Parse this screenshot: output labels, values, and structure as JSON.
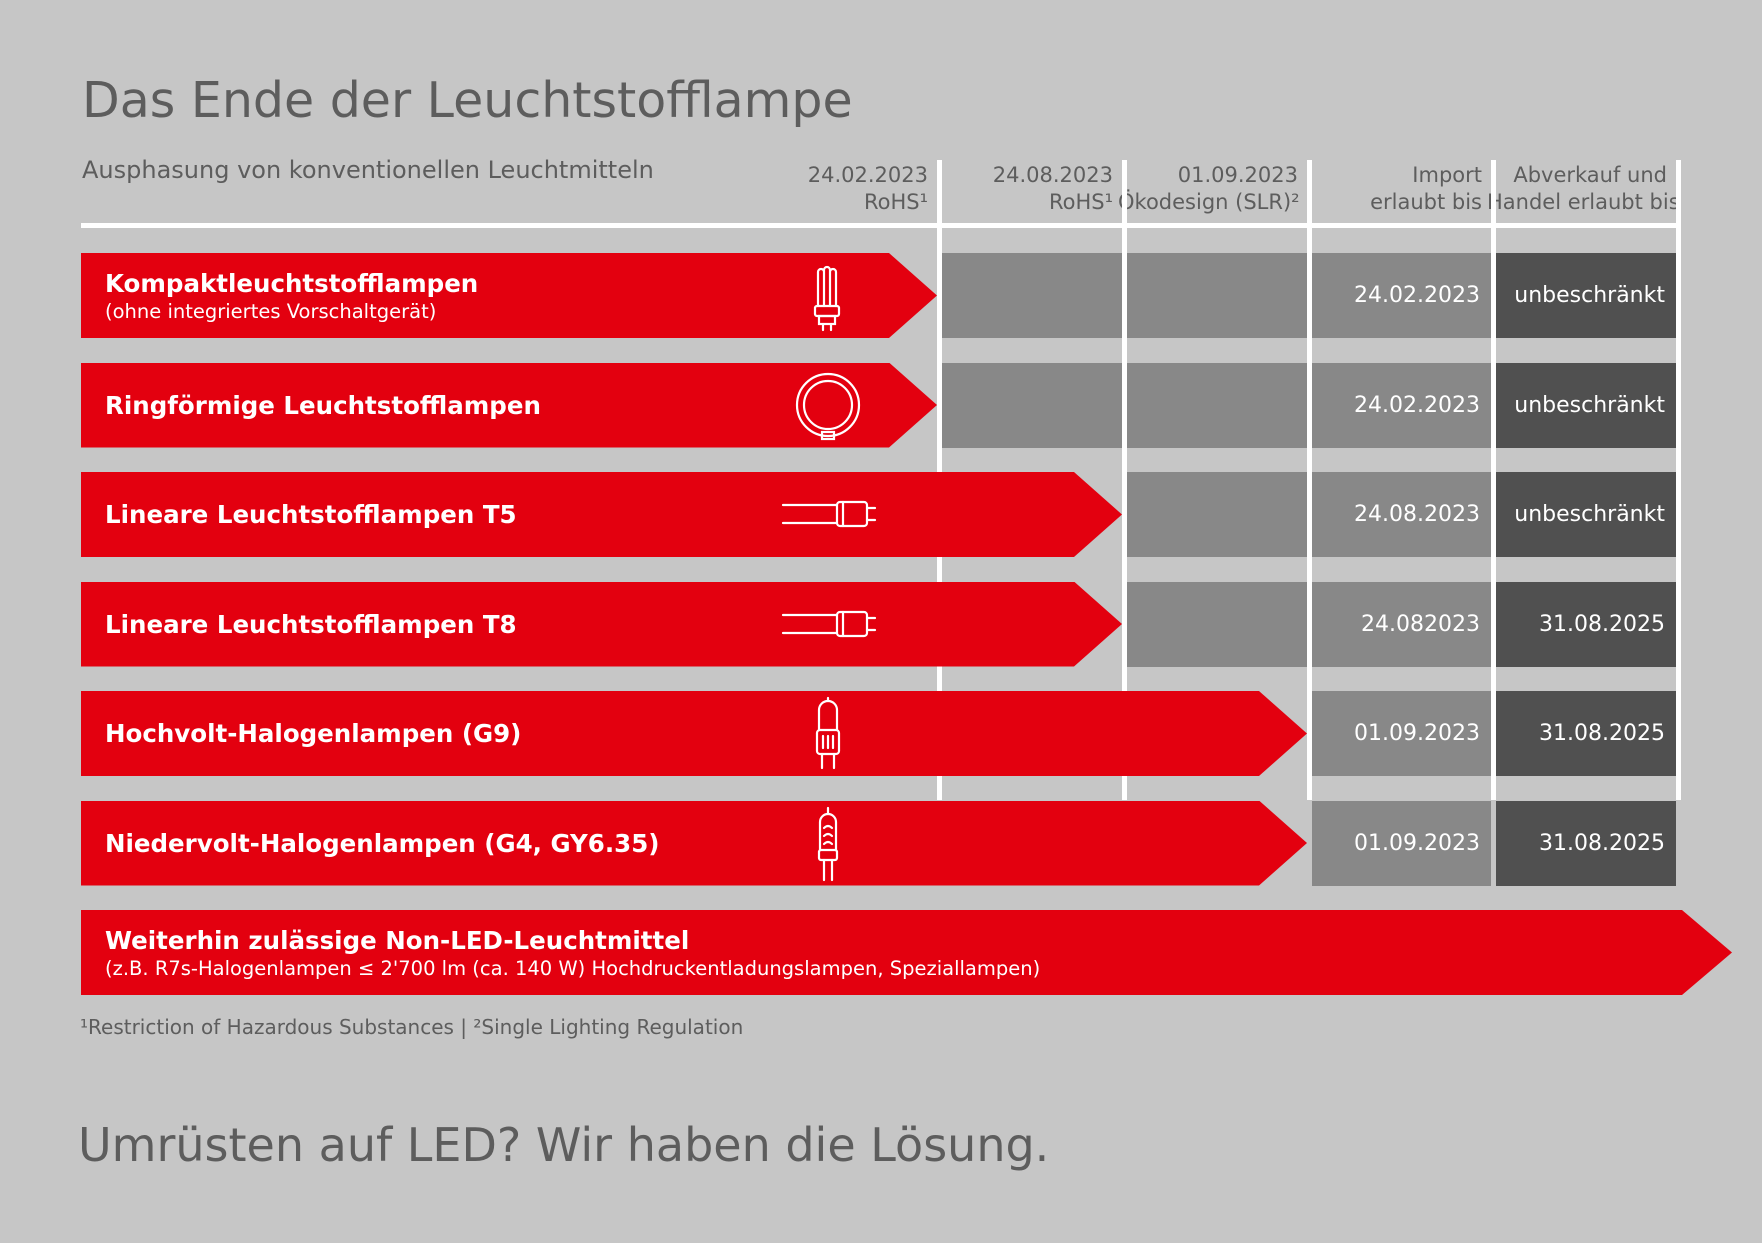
{
  "title": "Das Ende der Leuchtstofflampe",
  "subtitle": "Ausphasung von konventionellen Leuchtmitteln",
  "columns": [
    {
      "line1": "24.02.2023",
      "line2": "RoHS¹"
    },
    {
      "line1": "24.08.2023",
      "line2": "RoHS¹"
    },
    {
      "line1": "01.09.2023",
      "line2": "Ökodesign (SLR)²"
    },
    {
      "line1": "Import",
      "line2": "erlaubt bis"
    },
    {
      "line1": "Abverkauf und",
      "line2": "Handel erlaubt bis"
    }
  ],
  "rows": [
    {
      "label": "Kompaktleuchtstofflampen",
      "sublabel": "(ohne integriertes Vorschaltgerät)",
      "phaseout_column": 1,
      "icon": "compact-fluorescent-lamp-icon",
      "import_until": "24.02.2023",
      "trade_until": "unbeschränkt"
    },
    {
      "label": "Ringförmige Leuchtstofflampen",
      "sublabel": "",
      "phaseout_column": 1,
      "icon": "ring-fluorescent-lamp-icon",
      "import_until": "24.02.2023",
      "trade_until": "unbeschränkt"
    },
    {
      "label": "Lineare Leuchtstofflampen T5",
      "sublabel": "",
      "phaseout_column": 2,
      "icon": "linear-fluorescent-tube-icon",
      "import_until": "24.08.2023",
      "trade_until": "unbeschränkt"
    },
    {
      "label": "Lineare Leuchtstofflampen T8",
      "sublabel": "",
      "phaseout_column": 2,
      "icon": "linear-fluorescent-tube-icon",
      "import_until": "24.082023",
      "trade_until": "31.08.2025"
    },
    {
      "label": "Hochvolt-Halogenlampen (G9)",
      "sublabel": "",
      "phaseout_column": 3,
      "icon": "g9-halogen-lamp-icon",
      "import_until": "01.09.2023",
      "trade_until": "31.08.2025"
    },
    {
      "label": "Niedervolt-Halogenlampen (G4, GY6.35)",
      "sublabel": "",
      "phaseout_column": 3,
      "icon": "g4-halogen-lamp-icon",
      "import_until": "01.09.2023",
      "trade_until": "31.08.2025"
    }
  ],
  "allowed": {
    "label": "Weiterhin zulässige Non-LED-Leuchtmittel",
    "sublabel": "(z.B. R7s-Halogenlampen ≤ 2'700 lm (ca. 140 W) Hochdruckentladungslampen, Speziallampen)"
  },
  "footnote": "¹Restriction of Hazardous Substances | ²Single Lighting Regulation",
  "slogan": "Umrüsten auf LED? Wir haben die Lösung.",
  "colors": {
    "background": "#c6c6c6",
    "accent_red": "#e3000f",
    "cell_mid": "#888888",
    "cell_dark": "#505050",
    "divider": "#ffffff"
  }
}
